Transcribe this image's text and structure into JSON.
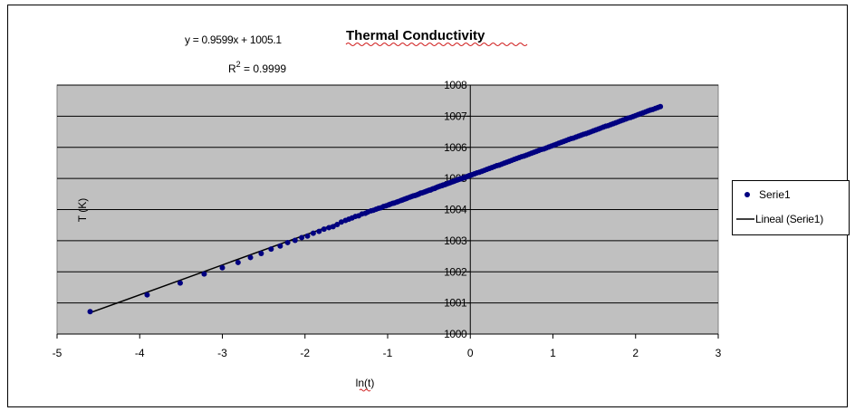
{
  "chart_data": {
    "type": "scatter",
    "title": "Thermal Conductivity",
    "xlabel": "ln(t)",
    "ylabel": "T (K)",
    "xlim": [
      -5,
      3
    ],
    "ylim": [
      1000,
      1008
    ],
    "x_ticks": [
      -5,
      -4,
      -3,
      -2,
      -1,
      0,
      1,
      2,
      3
    ],
    "y_ticks": [
      1000,
      1001,
      1002,
      1003,
      1004,
      1005,
      1006,
      1007,
      1008
    ],
    "grid": true,
    "plot_background": "#c0c0c0",
    "marker_color": "#000080",
    "trend_color": "#000000",
    "legend_position": "right",
    "equation": "y = 0.9599x + 1005.1",
    "r_squared_prefix": "R",
    "r_squared_exponent": "2",
    "r_squared_value": " = 0.9999",
    "trendline": {
      "name": "Lineal (Serie1)",
      "slope": 0.9599,
      "intercept": 1005.1,
      "x_range": [
        -4.6,
        2.3
      ]
    },
    "series": [
      {
        "name": "Serie1",
        "x": [
          -4.6,
          -3.91,
          -3.51,
          -3.22,
          -3.0,
          -2.81,
          -2.66,
          -2.53,
          -2.41,
          -2.3,
          -2.21,
          -2.12,
          -2.04,
          -1.97,
          -1.9,
          -1.83,
          -1.77,
          -1.71,
          -1.66,
          -1.61,
          -1.56,
          -1.51,
          -1.47,
          -1.43,
          -1.39,
          -1.35,
          -1.31,
          -1.27,
          -1.24,
          -1.2,
          -1.17,
          -1.14,
          -1.11,
          -1.08,
          -1.05,
          -1.02,
          -0.99,
          -0.97,
          -0.94,
          -0.92,
          -0.89,
          -0.87,
          -0.84,
          -0.82,
          -0.8,
          -0.78,
          -0.76,
          -0.73,
          -0.71,
          -0.69,
          -0.67,
          -0.65,
          -0.63,
          -0.62,
          -0.6,
          -0.58,
          -0.56,
          -0.54,
          -0.53,
          -0.51,
          -0.49,
          -0.48,
          -0.46,
          -0.45,
          -0.43,
          -0.42,
          -0.4,
          -0.39,
          -0.37,
          -0.36,
          -0.34,
          -0.33,
          -0.31,
          -0.3,
          -0.29,
          -0.27,
          -0.26,
          -0.25,
          -0.24,
          -0.22,
          -0.21,
          -0.2,
          -0.19,
          -0.17,
          -0.16,
          -0.15,
          -0.14,
          -0.13,
          -0.12,
          -0.11,
          -0.09,
          -0.08,
          -0.07,
          -0.06,
          -0.05,
          -0.04,
          -0.03,
          -0.02,
          -0.01,
          0.0,
          0.02,
          0.05,
          0.08,
          0.11,
          0.14,
          0.17,
          0.2,
          0.23,
          0.26,
          0.29,
          0.32,
          0.35,
          0.38,
          0.41,
          0.44,
          0.47,
          0.5,
          0.53,
          0.56,
          0.59,
          0.62,
          0.65,
          0.68,
          0.71,
          0.74,
          0.77,
          0.8,
          0.83,
          0.86,
          0.89,
          0.92,
          0.95,
          0.98,
          1.01,
          1.04,
          1.07,
          1.1,
          1.13,
          1.16,
          1.19,
          1.22,
          1.25,
          1.28,
          1.31,
          1.34,
          1.37,
          1.4,
          1.43,
          1.46,
          1.49,
          1.52,
          1.55,
          1.58,
          1.61,
          1.64,
          1.67,
          1.7,
          1.73,
          1.76,
          1.79,
          1.82,
          1.85,
          1.88,
          1.91,
          1.94,
          1.97,
          2.0,
          2.03,
          2.06,
          2.09,
          2.12,
          2.15,
          2.18,
          2.21,
          2.24,
          2.27,
          2.3
        ],
        "y": [
          1000.72,
          1001.26,
          1001.64,
          1001.93,
          1002.13,
          1002.3,
          1002.46,
          1002.59,
          1002.73,
          1002.83,
          1002.94,
          1003.01,
          1003.1,
          1003.15,
          1003.24,
          1003.3,
          1003.37,
          1003.42,
          1003.45,
          1003.52,
          1003.6,
          1003.65,
          1003.69,
          1003.73,
          1003.78,
          1003.8,
          1003.86,
          1003.88,
          1003.92,
          1003.96,
          1003.98,
          1004.01,
          1004.04,
          1004.06,
          1004.1,
          1004.12,
          1004.15,
          1004.17,
          1004.2,
          1004.21,
          1004.24,
          1004.26,
          1004.29,
          1004.31,
          1004.33,
          1004.35,
          1004.37,
          1004.4,
          1004.42,
          1004.44,
          1004.45,
          1004.47,
          1004.49,
          1004.5,
          1004.53,
          1004.54,
          1004.56,
          1004.58,
          1004.59,
          1004.61,
          1004.63,
          1004.63,
          1004.66,
          1004.67,
          1004.68,
          1004.7,
          1004.72,
          1004.73,
          1004.75,
          1004.76,
          1004.77,
          1004.79,
          1004.8,
          1004.81,
          1004.82,
          1004.84,
          1004.85,
          1004.86,
          1004.87,
          1004.89,
          1004.9,
          1004.91,
          1004.92,
          1004.94,
          1004.95,
          1004.96,
          1004.97,
          1004.98,
          1004.99,
          1004.99,
          1005.01,
          1005.02,
          1005.03,
          1005.04,
          1005.05,
          1005.06,
          1005.07,
          1005.08,
          1005.09,
          1005.1,
          1005.12,
          1005.15,
          1005.18,
          1005.2,
          1005.23,
          1005.26,
          1005.29,
          1005.32,
          1005.35,
          1005.38,
          1005.41,
          1005.43,
          1005.46,
          1005.49,
          1005.52,
          1005.55,
          1005.58,
          1005.61,
          1005.64,
          1005.67,
          1005.7,
          1005.72,
          1005.75,
          1005.78,
          1005.81,
          1005.84,
          1005.87,
          1005.9,
          1005.93,
          1005.95,
          1005.98,
          1006.01,
          1006.04,
          1006.07,
          1006.1,
          1006.13,
          1006.16,
          1006.19,
          1006.22,
          1006.25,
          1006.28,
          1006.3,
          1006.33,
          1006.36,
          1006.39,
          1006.42,
          1006.44,
          1006.47,
          1006.5,
          1006.53,
          1006.56,
          1006.59,
          1006.62,
          1006.65,
          1006.68,
          1006.7,
          1006.73,
          1006.76,
          1006.79,
          1006.82,
          1006.85,
          1006.88,
          1006.91,
          1006.94,
          1006.96,
          1006.99,
          1007.02,
          1007.05,
          1007.08,
          1007.11,
          1007.14,
          1007.17,
          1007.2,
          1007.22,
          1007.25,
          1007.28,
          1007.31
        ]
      }
    ]
  }
}
